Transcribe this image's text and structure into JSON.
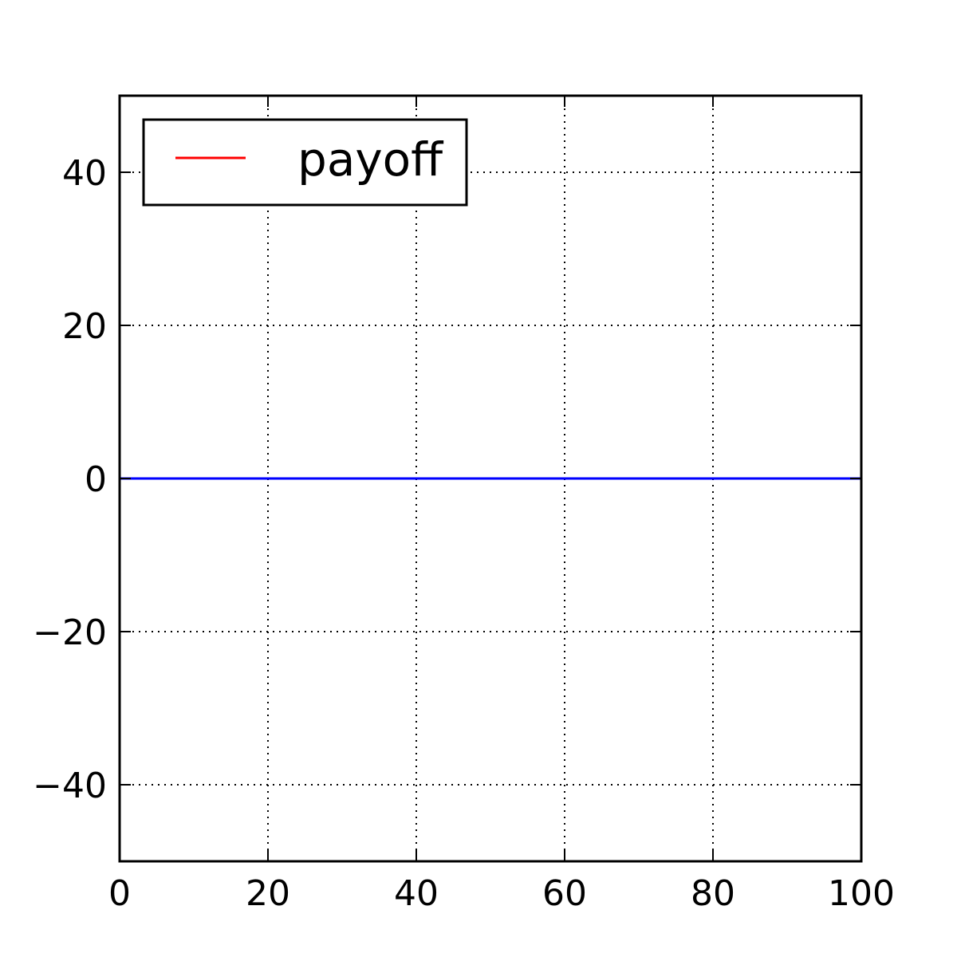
{
  "chart_data": {
    "type": "line",
    "title": "",
    "xlabel": "",
    "ylabel": "",
    "xlim": [
      0,
      100
    ],
    "ylim": [
      -50,
      50
    ],
    "xticks": [
      0,
      20,
      40,
      60,
      80,
      100
    ],
    "xtick_labels": [
      "0",
      "20",
      "40",
      "60",
      "80",
      "100"
    ],
    "yticks": [
      -40,
      -20,
      0,
      20,
      40
    ],
    "ytick_labels": [
      "−40",
      "−20",
      "0",
      "20",
      "40"
    ],
    "grid": true,
    "legend": {
      "placement": "top-left",
      "entries": [
        "payoff"
      ]
    },
    "series": [
      {
        "name": "payoff",
        "color": "#ff0000",
        "x": [
          0,
          100
        ],
        "y": [
          0,
          0
        ]
      },
      {
        "color": "#0000ff",
        "x": [
          0,
          100
        ],
        "y": [
          0,
          0
        ]
      }
    ]
  }
}
